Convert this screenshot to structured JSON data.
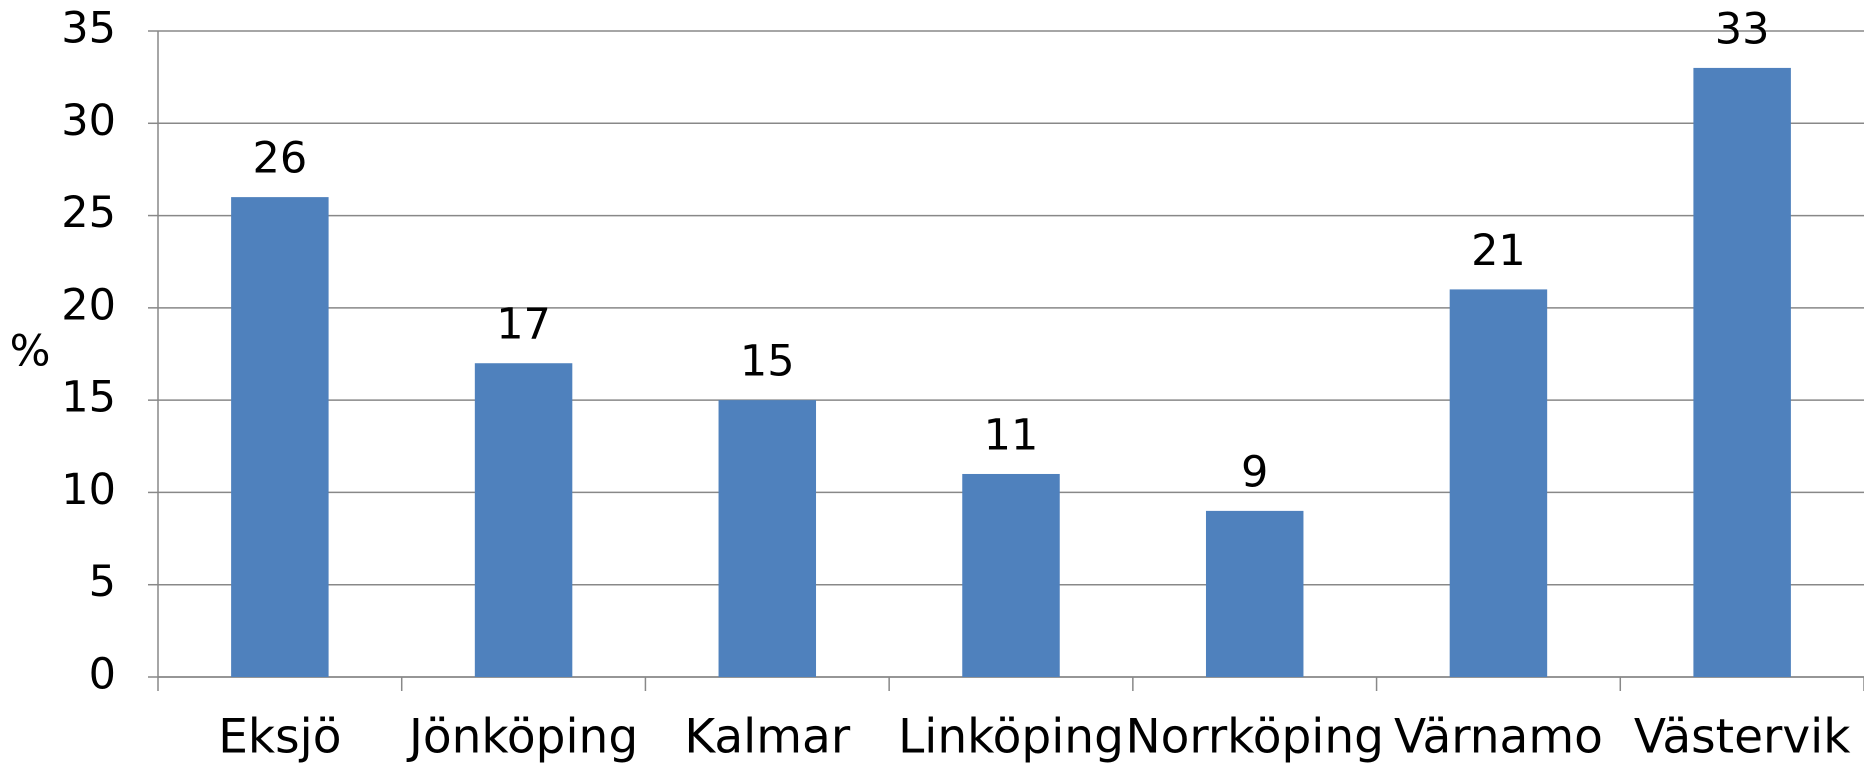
{
  "chart_data": {
    "type": "bar",
    "y_label": "%",
    "categories": [
      "Eksjö",
      "Jönköping",
      "Kalmar",
      "Linköping",
      "Norrköping",
      "Värnamo",
      "Västervik"
    ],
    "values": [
      26,
      17,
      15,
      11,
      9,
      21,
      33
    ],
    "color": "#4f81bd",
    "ylim": [
      0,
      35
    ],
    "yticks": [
      0,
      5,
      10,
      15,
      20,
      25,
      30,
      35
    ],
    "grid": true,
    "data_labels": true
  }
}
